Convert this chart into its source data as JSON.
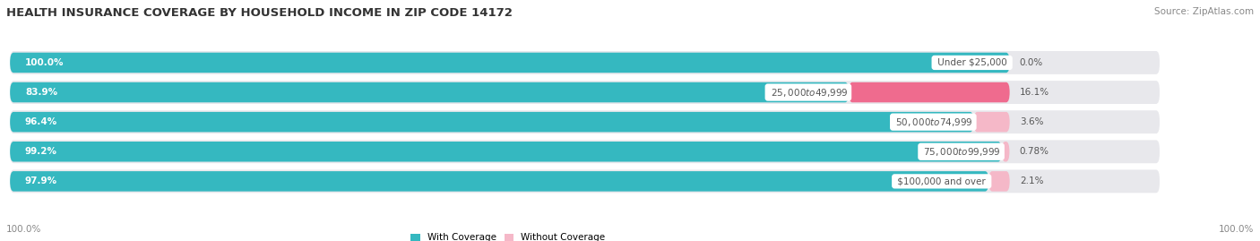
{
  "title": "HEALTH INSURANCE COVERAGE BY HOUSEHOLD INCOME IN ZIP CODE 14172",
  "source": "Source: ZipAtlas.com",
  "categories": [
    "Under $25,000",
    "$25,000 to $49,999",
    "$50,000 to $74,999",
    "$75,000 to $99,999",
    "$100,000 and over"
  ],
  "with_coverage": [
    100.0,
    83.9,
    96.4,
    99.2,
    97.9
  ],
  "without_coverage": [
    0.0,
    16.1,
    3.6,
    0.78,
    2.1
  ],
  "with_coverage_color": "#35b8c0",
  "without_coverage_color_row0": "#f5b8c8",
  "without_coverage_color_row1": "#ef6b8e",
  "without_coverage_color_row2": "#f5b8c8",
  "without_coverage_color_row3": "#f5b8c8",
  "without_coverage_color_row4": "#f5b8c8",
  "bar_bg_color": "#e8e8ec",
  "background_color": "#ffffff",
  "title_fontsize": 9.5,
  "source_fontsize": 7.5,
  "label_fontsize": 7.5,
  "axis_label_left": "100.0%",
  "axis_label_right": "100.0%",
  "legend_with": "With Coverage",
  "legend_without": "Without Coverage",
  "wc_label_color": "white",
  "woc_label_color": "#555555",
  "cat_label_color": "#555555"
}
